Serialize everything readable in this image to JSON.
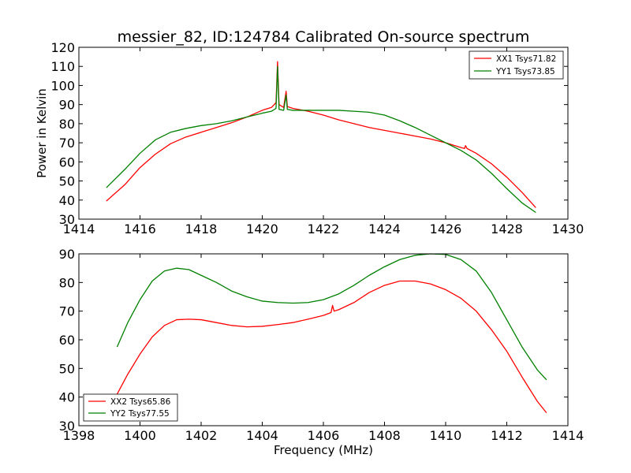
{
  "chart_data": [
    {
      "type": "line",
      "title": "messier_82, ID:124784 Calibrated On-source spectrum",
      "xlabel": "",
      "ylabel": "Power in Kelvin",
      "xlim": [
        1414,
        1430
      ],
      "ylim": [
        30,
        120
      ],
      "xticks": [
        "1414",
        "1416",
        "1418",
        "1420",
        "1422",
        "1424",
        "1426",
        "1428",
        "1430"
      ],
      "yticks": [
        "30",
        "40",
        "50",
        "60",
        "70",
        "80",
        "90",
        "100",
        "110",
        "120"
      ],
      "legend_position": "top-right",
      "grid": false,
      "series": [
        {
          "name": "XX1 Tsys71.82",
          "color": "#ff0000",
          "x": [
            1414.9,
            1415.5,
            1416.0,
            1416.5,
            1417.0,
            1417.5,
            1418.0,
            1418.5,
            1419.0,
            1419.5,
            1420.0,
            1420.3,
            1420.45,
            1420.5,
            1420.55,
            1420.7,
            1420.78,
            1420.82,
            1421.0,
            1421.5,
            1422.0,
            1422.5,
            1423.0,
            1423.5,
            1424.0,
            1424.5,
            1425.0,
            1425.5,
            1426.0,
            1426.5,
            1426.62,
            1426.65,
            1426.7,
            1427.0,
            1427.5,
            1428.0,
            1428.5,
            1428.95
          ],
          "y": [
            39.5,
            48,
            57,
            64,
            69.5,
            73,
            75.5,
            78,
            80.5,
            83.5,
            87,
            88.5,
            91,
            112.5,
            90,
            88.5,
            97,
            89,
            88,
            86.5,
            84.5,
            82,
            80,
            78,
            76.5,
            75,
            73.5,
            72,
            70,
            67.5,
            67,
            68.5,
            67,
            64.5,
            59,
            52,
            44,
            36
          ]
        },
        {
          "name": "YY1 Tsys73.85",
          "color": "#008000",
          "x": [
            1414.9,
            1415.5,
            1416.0,
            1416.5,
            1417.0,
            1417.5,
            1418.0,
            1418.5,
            1419.0,
            1419.5,
            1420.0,
            1420.3,
            1420.45,
            1420.5,
            1420.55,
            1420.7,
            1420.78,
            1420.82,
            1421.0,
            1421.5,
            1422.0,
            1422.5,
            1423.0,
            1423.5,
            1424.0,
            1424.5,
            1425.0,
            1425.5,
            1426.0,
            1426.5,
            1427.0,
            1427.5,
            1428.0,
            1428.5,
            1428.95
          ],
          "y": [
            46.5,
            56,
            64.5,
            71.5,
            75.5,
            77.5,
            79,
            80,
            81.5,
            83.5,
            85.5,
            86.5,
            88,
            110,
            87.5,
            87,
            95,
            87.5,
            87,
            87,
            87,
            87,
            86.5,
            86,
            84.5,
            81.5,
            78,
            74,
            70,
            66,
            61,
            54,
            46,
            38.5,
            33.5
          ]
        }
      ]
    },
    {
      "type": "line",
      "title": "",
      "xlabel": "Frequency (MHz)",
      "ylabel": "",
      "xlim": [
        1398,
        1414
      ],
      "ylim": [
        30,
        90
      ],
      "xticks": [
        "1398",
        "1400",
        "1402",
        "1404",
        "1406",
        "1408",
        "1410",
        "1412",
        "1414"
      ],
      "yticks": [
        "30",
        "40",
        "50",
        "60",
        "70",
        "80",
        "90"
      ],
      "legend_position": "bottom-left",
      "grid": false,
      "series": [
        {
          "name": "XX2 Tsys65.86",
          "color": "#ff0000",
          "x": [
            1399.25,
            1399.6,
            1400.0,
            1400.4,
            1400.8,
            1401.2,
            1401.6,
            1402.0,
            1402.5,
            1403.0,
            1403.5,
            1404.0,
            1404.5,
            1405.0,
            1405.5,
            1406.0,
            1406.25,
            1406.3,
            1406.35,
            1406.5,
            1407.0,
            1407.5,
            1408.0,
            1408.5,
            1409.0,
            1409.5,
            1410.0,
            1410.5,
            1411.0,
            1411.5,
            1412.0,
            1412.5,
            1413.0,
            1413.3
          ],
          "y": [
            41,
            48,
            55,
            61,
            65,
            67,
            67.2,
            67,
            66,
            65,
            64.5,
            64.7,
            65.3,
            66,
            67.2,
            68.5,
            69.5,
            72,
            70,
            70.5,
            73,
            76.5,
            79,
            80.5,
            80.5,
            79.5,
            77.5,
            74.5,
            70,
            63.5,
            56,
            47,
            38.5,
            34.5
          ]
        },
        {
          "name": "YY2 Tsys77.55",
          "color": "#008000",
          "x": [
            1399.25,
            1399.6,
            1400.0,
            1400.4,
            1400.8,
            1401.2,
            1401.6,
            1402.0,
            1402.5,
            1403.0,
            1403.5,
            1404.0,
            1404.5,
            1405.0,
            1405.5,
            1406.0,
            1406.5,
            1407.0,
            1407.5,
            1408.0,
            1408.5,
            1409.0,
            1409.5,
            1410.0,
            1410.5,
            1411.0,
            1411.5,
            1412.0,
            1412.5,
            1413.0,
            1413.3
          ],
          "y": [
            57.5,
            66,
            74,
            80.5,
            84,
            85,
            84.5,
            82.5,
            80,
            77,
            75,
            73.5,
            73,
            72.8,
            73,
            74,
            76,
            79,
            82.5,
            85.5,
            88,
            89.5,
            90,
            89.8,
            88,
            84,
            76.5,
            67,
            57.5,
            49.5,
            46
          ]
        }
      ]
    }
  ]
}
